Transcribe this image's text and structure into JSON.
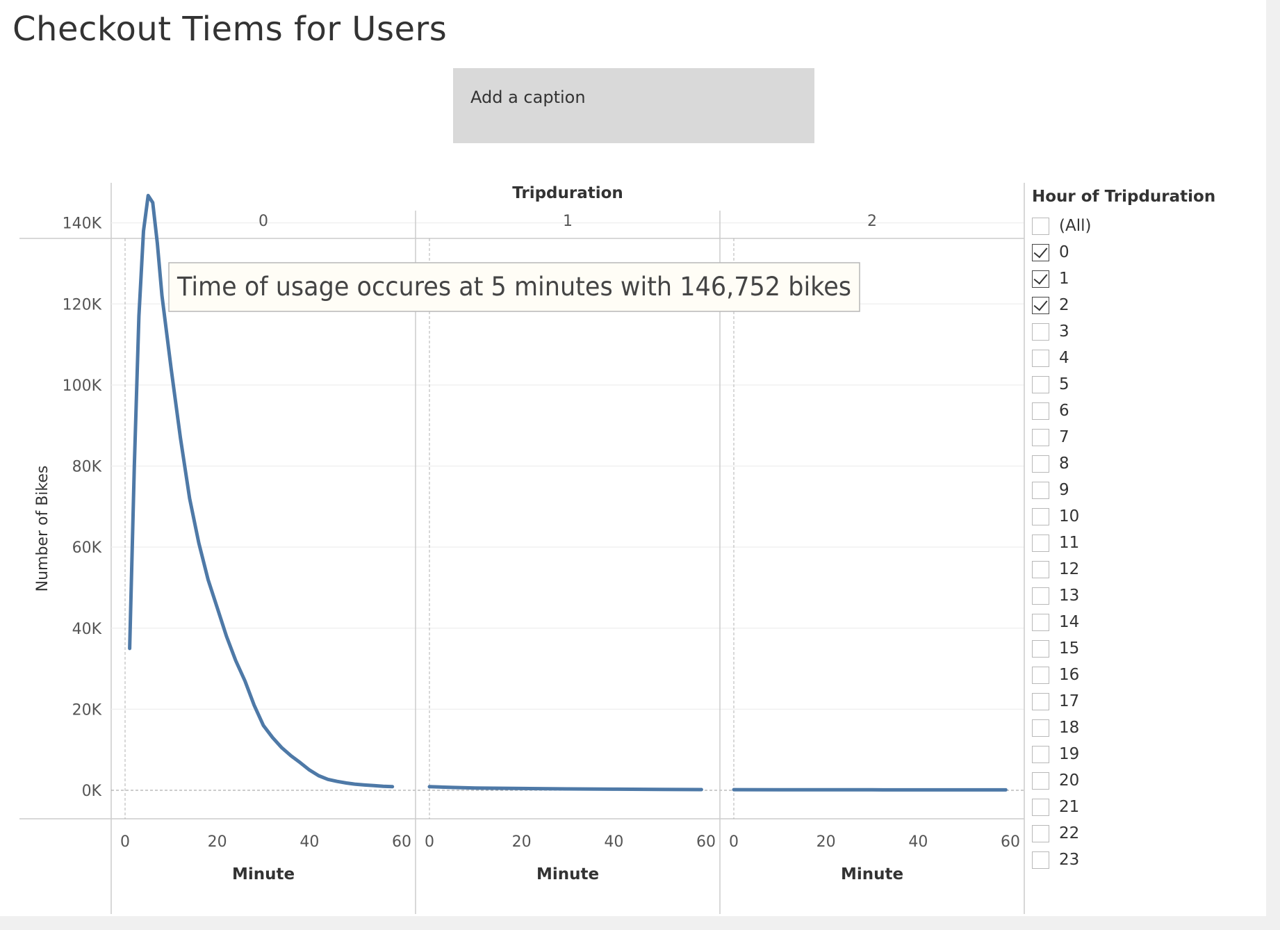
{
  "title": "Checkout Tiems for Users",
  "caption_placeholder": "Add a caption",
  "filter": {
    "title": "Hour of Tripduration",
    "items": [
      {
        "label": "(All)",
        "checked": false
      },
      {
        "label": "0",
        "checked": true
      },
      {
        "label": "1",
        "checked": true
      },
      {
        "label": "2",
        "checked": true
      },
      {
        "label": "3",
        "checked": false
      },
      {
        "label": "4",
        "checked": false
      },
      {
        "label": "5",
        "checked": false
      },
      {
        "label": "6",
        "checked": false
      },
      {
        "label": "7",
        "checked": false
      },
      {
        "label": "8",
        "checked": false
      },
      {
        "label": "9",
        "checked": false
      },
      {
        "label": "10",
        "checked": false
      },
      {
        "label": "11",
        "checked": false
      },
      {
        "label": "12",
        "checked": false
      },
      {
        "label": "13",
        "checked": false
      },
      {
        "label": "14",
        "checked": false
      },
      {
        "label": "15",
        "checked": false
      },
      {
        "label": "16",
        "checked": false
      },
      {
        "label": "17",
        "checked": false
      },
      {
        "label": "18",
        "checked": false
      },
      {
        "label": "19",
        "checked": false
      },
      {
        "label": "20",
        "checked": false
      },
      {
        "label": "21",
        "checked": false
      },
      {
        "label": "22",
        "checked": false
      },
      {
        "label": "23",
        "checked": false
      }
    ]
  },
  "chart_data": {
    "type": "line",
    "column_header": "Tripduration",
    "panels": [
      {
        "label": "0",
        "x": [
          1,
          2,
          3,
          4,
          5,
          6,
          7,
          8,
          10,
          12,
          14,
          16,
          18,
          20,
          22,
          24,
          26,
          28,
          30,
          32,
          34,
          36,
          38,
          40,
          42,
          44,
          46,
          48,
          50,
          52,
          54,
          56,
          58
        ],
        "y": [
          35000,
          80000,
          117000,
          138000,
          146752,
          145000,
          135000,
          122000,
          104000,
          87000,
          72000,
          61000,
          52000,
          45000,
          38000,
          32000,
          27000,
          21000,
          16000,
          13000,
          10500,
          8500,
          6800,
          5000,
          3600,
          2700,
          2200,
          1800,
          1500,
          1300,
          1150,
          1000,
          900
        ]
      },
      {
        "label": "1",
        "x": [
          0,
          5,
          10,
          20,
          30,
          40,
          50,
          59
        ],
        "y": [
          900,
          700,
          550,
          450,
          350,
          280,
          230,
          180
        ]
      },
      {
        "label": "2",
        "x": [
          0,
          10,
          20,
          30,
          40,
          50,
          59
        ],
        "y": [
          150,
          140,
          130,
          120,
          110,
          105,
          100
        ]
      }
    ],
    "xlabel": "Minute",
    "ylabel": "Number of Bikes",
    "xlim": [
      0,
      60
    ],
    "ylim": [
      0,
      150000
    ],
    "x_ticks": [
      "0",
      "20",
      "40",
      "60"
    ],
    "y_ticks": [
      "0K",
      "20K",
      "40K",
      "60K",
      "80K",
      "100K",
      "120K",
      "140K"
    ],
    "grid": true,
    "legend": "none",
    "line_color": "#4e79a7",
    "annotation": "Time of usage occures at 5 minutes with 146,752 bikes"
  }
}
